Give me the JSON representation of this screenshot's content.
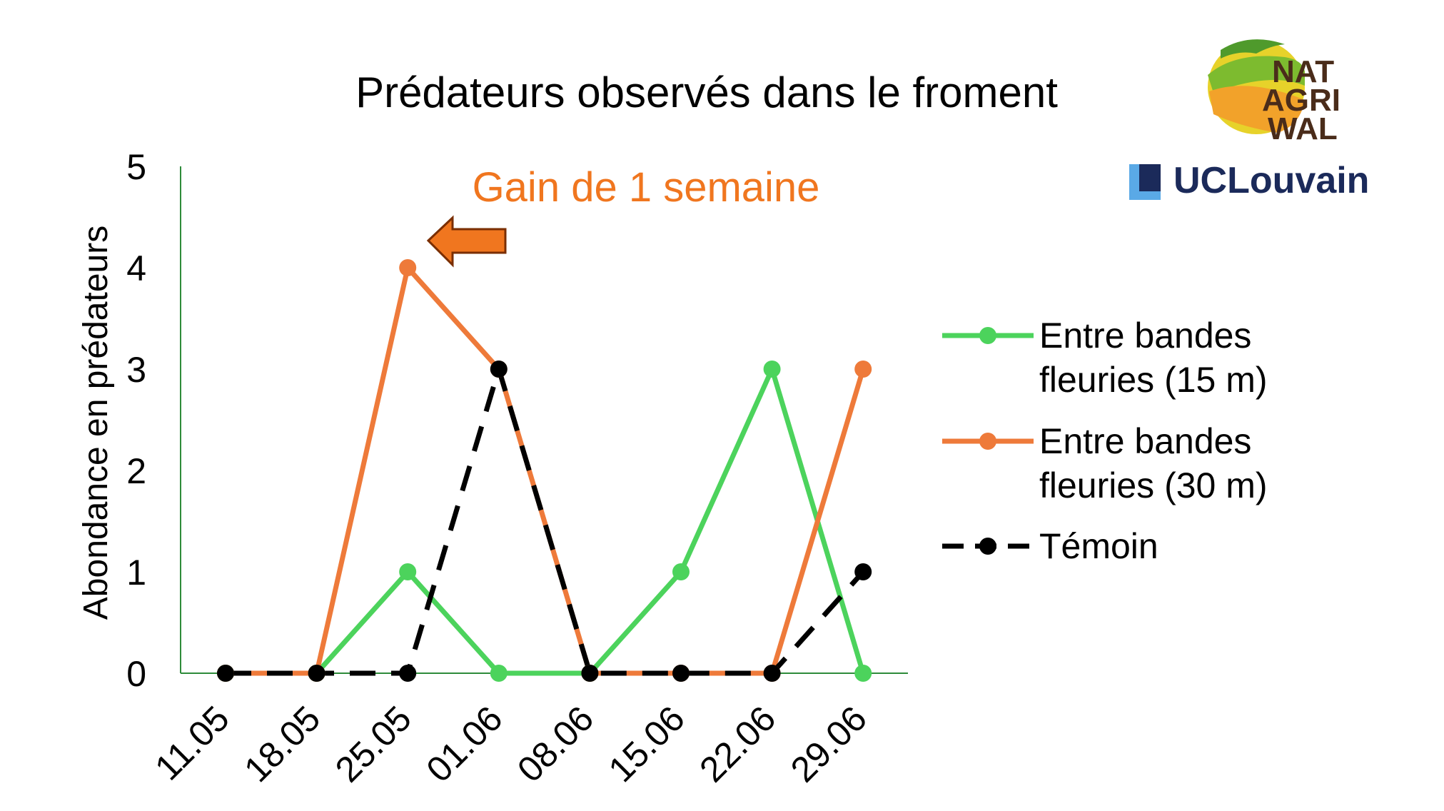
{
  "chart_data": {
    "type": "line",
    "title": "Prédateurs observés dans le froment",
    "ylabel": "Abondance en prédateurs",
    "xlabel": "",
    "categories": [
      "11.05",
      "18.05",
      "25.05",
      "01.06",
      "08.06",
      "15.06",
      "22.06",
      "29.06"
    ],
    "ylim": [
      0,
      5
    ],
    "yticks": [
      0,
      1,
      2,
      3,
      4,
      5
    ],
    "grid": false,
    "legend_position": "right",
    "series": [
      {
        "name": "Entre bandes fleuries (15 m)",
        "legend_lines": [
          "Entre bandes",
          "fleuries (15 m)"
        ],
        "color": "#4cd35c",
        "dashed": false,
        "values": [
          0,
          0,
          1,
          0,
          0,
          1,
          3,
          0
        ]
      },
      {
        "name": "Entre bandes fleuries (30 m)",
        "legend_lines": [
          "Entre bandes",
          "fleuries (30 m)"
        ],
        "color": "#ee7a3a",
        "dashed": false,
        "values": [
          0,
          0,
          4,
          3,
          0,
          0,
          0,
          3
        ]
      },
      {
        "name": "Témoin",
        "legend_lines": [
          "Témoin"
        ],
        "color": "#000000",
        "dashed": true,
        "values": [
          0,
          0,
          0,
          3,
          0,
          0,
          0,
          1
        ]
      }
    ],
    "annotation": {
      "text": "Gain de 1 semaine",
      "color": "#f0761f",
      "arrow": "left-arrow"
    },
    "axis_color": "#2e8b3a"
  },
  "logos": {
    "natagriwal": {
      "lines": [
        "NAT",
        "AGRI",
        "WAL"
      ],
      "text_color": "#4a2c1a"
    },
    "uclouvain": {
      "text": "UCLouvain",
      "color": "#1b2a5a",
      "accent": "#5aa9e6"
    }
  }
}
